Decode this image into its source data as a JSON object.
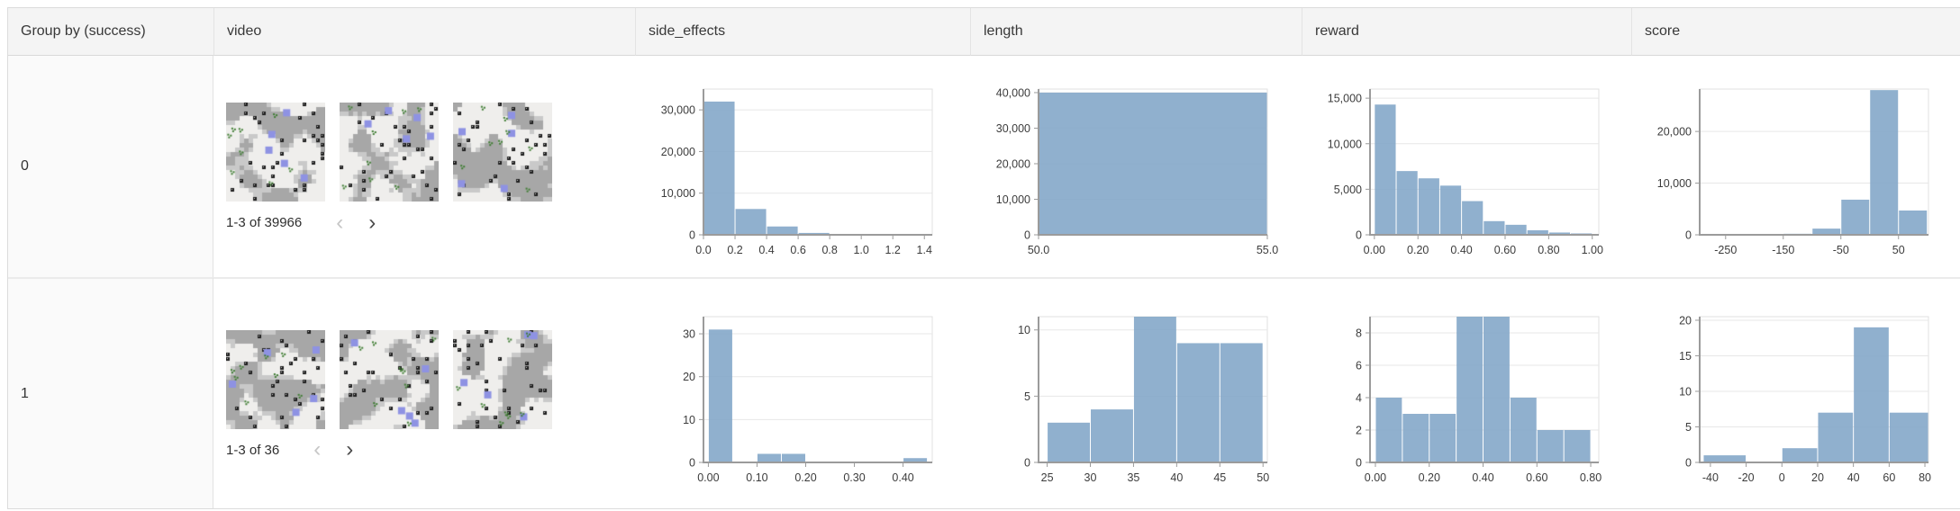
{
  "table": {
    "columns": [
      {
        "key": "group",
        "label": "Group by (success)"
      },
      {
        "key": "video",
        "label": "video"
      },
      {
        "key": "side_effects",
        "label": "side_effects"
      },
      {
        "key": "length",
        "label": "length"
      },
      {
        "key": "reward",
        "label": "reward"
      },
      {
        "key": "score",
        "label": "score"
      }
    ]
  },
  "rows": [
    {
      "group": "0",
      "video": {
        "pagination": "1-3 of 39966",
        "prev_icon": "‹",
        "next_icon": "›",
        "thumbs": [
          {
            "seed": 11
          },
          {
            "seed": 27
          },
          {
            "seed": 43
          }
        ]
      }
    },
    {
      "group": "1",
      "video": {
        "pagination": "1-3 of 36",
        "prev_icon": "‹",
        "next_icon": "›",
        "thumbs": [
          {
            "seed": 58
          },
          {
            "seed": 74
          },
          {
            "seed": 91
          }
        ]
      }
    }
  ],
  "colors": {
    "bar": "#84a7c9",
    "axis": "#9b9b9b",
    "grid": "#e7e7e7",
    "frame": "#e1e1e1",
    "tick_text": "#3c3c3c",
    "header_bg": "#f4f4f4",
    "accent_blue": "#8e92e3",
    "sprite_green": "#3f7d33"
  },
  "chart_data": [
    {
      "type": "histogram",
      "group": "0",
      "column": "side_effects",
      "xlim": [
        0,
        1.45
      ],
      "ylim": [
        0,
        35000
      ],
      "xticks": [
        {
          "v": 0.0,
          "label": "0.0"
        },
        {
          "v": 0.2,
          "label": "0.2"
        },
        {
          "v": 0.4,
          "label": "0.4"
        },
        {
          "v": 0.6,
          "label": "0.6"
        },
        {
          "v": 0.8,
          "label": "0.8"
        },
        {
          "v": 1.0,
          "label": "1.0"
        },
        {
          "v": 1.2,
          "label": "1.2"
        },
        {
          "v": 1.4,
          "label": "1.4"
        }
      ],
      "yticks": [
        {
          "v": 0,
          "label": "0"
        },
        {
          "v": 10000,
          "label": "10,000"
        },
        {
          "v": 20000,
          "label": "20,000"
        },
        {
          "v": 30000,
          "label": "30,000"
        }
      ],
      "bars": [
        {
          "x0": 0.0,
          "x1": 0.2,
          "count": 32000
        },
        {
          "x0": 0.2,
          "x1": 0.4,
          "count": 6200
        },
        {
          "x0": 0.4,
          "x1": 0.6,
          "count": 2000
        },
        {
          "x0": 0.6,
          "x1": 0.8,
          "count": 450
        }
      ]
    },
    {
      "type": "histogram",
      "group": "0",
      "column": "length",
      "xlim": [
        50,
        55
      ],
      "ylim": [
        0,
        41000
      ],
      "xticks": [
        {
          "v": 50,
          "label": "50.0"
        },
        {
          "v": 55,
          "label": "55.0"
        }
      ],
      "yticks": [
        {
          "v": 0,
          "label": "0"
        },
        {
          "v": 10000,
          "label": "10,000"
        },
        {
          "v": 20000,
          "label": "20,000"
        },
        {
          "v": 30000,
          "label": "30,000"
        },
        {
          "v": 40000,
          "label": "40,000"
        }
      ],
      "bars": [
        {
          "x0": 50,
          "x1": 55,
          "count": 40000
        }
      ]
    },
    {
      "type": "histogram",
      "group": "0",
      "column": "reward",
      "xlim": [
        -0.02,
        1.03
      ],
      "ylim": [
        0,
        16000
      ],
      "xticks": [
        {
          "v": 0.0,
          "label": "0.00"
        },
        {
          "v": 0.2,
          "label": "0.20"
        },
        {
          "v": 0.4,
          "label": "0.40"
        },
        {
          "v": 0.6,
          "label": "0.60"
        },
        {
          "v": 0.8,
          "label": "0.80"
        },
        {
          "v": 1.0,
          "label": "1.00"
        }
      ],
      "yticks": [
        {
          "v": 0,
          "label": "0"
        },
        {
          "v": 5000,
          "label": "5,000"
        },
        {
          "v": 10000,
          "label": "10,000"
        },
        {
          "v": 15000,
          "label": "15,000"
        }
      ],
      "bars": [
        {
          "x0": 0.0,
          "x1": 0.1,
          "count": 14300
        },
        {
          "x0": 0.1,
          "x1": 0.2,
          "count": 7000
        },
        {
          "x0": 0.2,
          "x1": 0.3,
          "count": 6200
        },
        {
          "x0": 0.3,
          "x1": 0.4,
          "count": 5400
        },
        {
          "x0": 0.4,
          "x1": 0.5,
          "count": 3700
        },
        {
          "x0": 0.5,
          "x1": 0.6,
          "count": 1500
        },
        {
          "x0": 0.6,
          "x1": 0.7,
          "count": 1100
        },
        {
          "x0": 0.7,
          "x1": 0.8,
          "count": 500
        },
        {
          "x0": 0.8,
          "x1": 0.9,
          "count": 250
        },
        {
          "x0": 0.9,
          "x1": 1.0,
          "count": 150
        }
      ]
    },
    {
      "type": "histogram",
      "group": "0",
      "column": "score",
      "xlim": [
        -295,
        102
      ],
      "ylim": [
        0,
        28200
      ],
      "xticks": [
        {
          "v": -250,
          "label": "-250"
        },
        {
          "v": -150,
          "label": "-150"
        },
        {
          "v": -50,
          "label": "-50"
        },
        {
          "v": 50,
          "label": "50"
        }
      ],
      "yticks": [
        {
          "v": 0,
          "label": "0"
        },
        {
          "v": 10000,
          "label": "10,000"
        },
        {
          "v": 20000,
          "label": "20,000"
        }
      ],
      "bars": [
        {
          "x0": -295,
          "x1": -250,
          "count": 80
        },
        {
          "x0": -250,
          "x1": -200,
          "count": 120
        },
        {
          "x0": -200,
          "x1": -150,
          "count": 120
        },
        {
          "x0": -150,
          "x1": -100,
          "count": 200
        },
        {
          "x0": -100,
          "x1": -50,
          "count": 1200
        },
        {
          "x0": -50,
          "x1": 0,
          "count": 6800
        },
        {
          "x0": 0,
          "x1": 50,
          "count": 28000
        },
        {
          "x0": 50,
          "x1": 100,
          "count": 4700
        }
      ]
    },
    {
      "type": "histogram",
      "group": "1",
      "column": "side_effects",
      "xlim": [
        -0.01,
        0.46
      ],
      "ylim": [
        0,
        34
      ],
      "xticks": [
        {
          "v": 0.0,
          "label": "0.00"
        },
        {
          "v": 0.1,
          "label": "0.10"
        },
        {
          "v": 0.2,
          "label": "0.20"
        },
        {
          "v": 0.3,
          "label": "0.30"
        },
        {
          "v": 0.4,
          "label": "0.40"
        }
      ],
      "yticks": [
        {
          "v": 0,
          "label": "0"
        },
        {
          "v": 10,
          "label": "10"
        },
        {
          "v": 20,
          "label": "20"
        },
        {
          "v": 30,
          "label": "30"
        }
      ],
      "bars": [
        {
          "x0": 0.0,
          "x1": 0.05,
          "count": 31
        },
        {
          "x0": 0.1,
          "x1": 0.15,
          "count": 2
        },
        {
          "x0": 0.15,
          "x1": 0.2,
          "count": 2
        },
        {
          "x0": 0.4,
          "x1": 0.45,
          "count": 1
        }
      ]
    },
    {
      "type": "histogram",
      "group": "1",
      "column": "length",
      "xlim": [
        24,
        50.5
      ],
      "ylim": [
        0,
        11
      ],
      "xticks": [
        {
          "v": 25,
          "label": "25"
        },
        {
          "v": 30,
          "label": "30"
        },
        {
          "v": 35,
          "label": "35"
        },
        {
          "v": 40,
          "label": "40"
        },
        {
          "v": 45,
          "label": "45"
        },
        {
          "v": 50,
          "label": "50"
        }
      ],
      "yticks": [
        {
          "v": 0,
          "label": "0"
        },
        {
          "v": 5,
          "label": "5"
        },
        {
          "v": 10,
          "label": "10"
        }
      ],
      "bars": [
        {
          "x0": 25,
          "x1": 30,
          "count": 3
        },
        {
          "x0": 30,
          "x1": 35,
          "count": 4
        },
        {
          "x0": 35,
          "x1": 40,
          "count": 11
        },
        {
          "x0": 40,
          "x1": 45,
          "count": 9
        },
        {
          "x0": 45,
          "x1": 50,
          "count": 9
        }
      ]
    },
    {
      "type": "histogram",
      "group": "1",
      "column": "reward",
      "xlim": [
        -0.02,
        0.83
      ],
      "ylim": [
        0,
        9
      ],
      "xticks": [
        {
          "v": 0.0,
          "label": "0.00"
        },
        {
          "v": 0.2,
          "label": "0.20"
        },
        {
          "v": 0.4,
          "label": "0.40"
        },
        {
          "v": 0.6,
          "label": "0.60"
        },
        {
          "v": 0.8,
          "label": "0.80"
        }
      ],
      "yticks": [
        {
          "v": 0,
          "label": "0"
        },
        {
          "v": 2,
          "label": "2"
        },
        {
          "v": 4,
          "label": "4"
        },
        {
          "v": 6,
          "label": "6"
        },
        {
          "v": 8,
          "label": "8"
        }
      ],
      "bars": [
        {
          "x0": 0.0,
          "x1": 0.1,
          "count": 4
        },
        {
          "x0": 0.1,
          "x1": 0.2,
          "count": 3
        },
        {
          "x0": 0.2,
          "x1": 0.3,
          "count": 3
        },
        {
          "x0": 0.3,
          "x1": 0.4,
          "count": 9
        },
        {
          "x0": 0.4,
          "x1": 0.5,
          "count": 9
        },
        {
          "x0": 0.5,
          "x1": 0.6,
          "count": 4
        },
        {
          "x0": 0.6,
          "x1": 0.7,
          "count": 2
        },
        {
          "x0": 0.7,
          "x1": 0.8,
          "count": 2
        }
      ]
    },
    {
      "type": "histogram",
      "group": "1",
      "column": "score",
      "xlim": [
        -46,
        82
      ],
      "ylim": [
        0,
        20.5
      ],
      "xticks": [
        {
          "v": -40,
          "label": "-40"
        },
        {
          "v": -20,
          "label": "-20"
        },
        {
          "v": 0,
          "label": "0"
        },
        {
          "v": 20,
          "label": "20"
        },
        {
          "v": 40,
          "label": "40"
        },
        {
          "v": 60,
          "label": "60"
        },
        {
          "v": 80,
          "label": "80"
        }
      ],
      "yticks": [
        {
          "v": 0,
          "label": "0"
        },
        {
          "v": 5,
          "label": "5"
        },
        {
          "v": 10,
          "label": "10"
        },
        {
          "v": 15,
          "label": "15"
        },
        {
          "v": 20,
          "label": "20"
        }
      ],
      "bars": [
        {
          "x0": -44,
          "x1": -20,
          "count": 1
        },
        {
          "x0": 0,
          "x1": 20,
          "count": 2
        },
        {
          "x0": 20,
          "x1": 40,
          "count": 7
        },
        {
          "x0": 40,
          "x1": 60,
          "count": 19
        },
        {
          "x0": 60,
          "x1": 82,
          "count": 7
        }
      ]
    }
  ]
}
